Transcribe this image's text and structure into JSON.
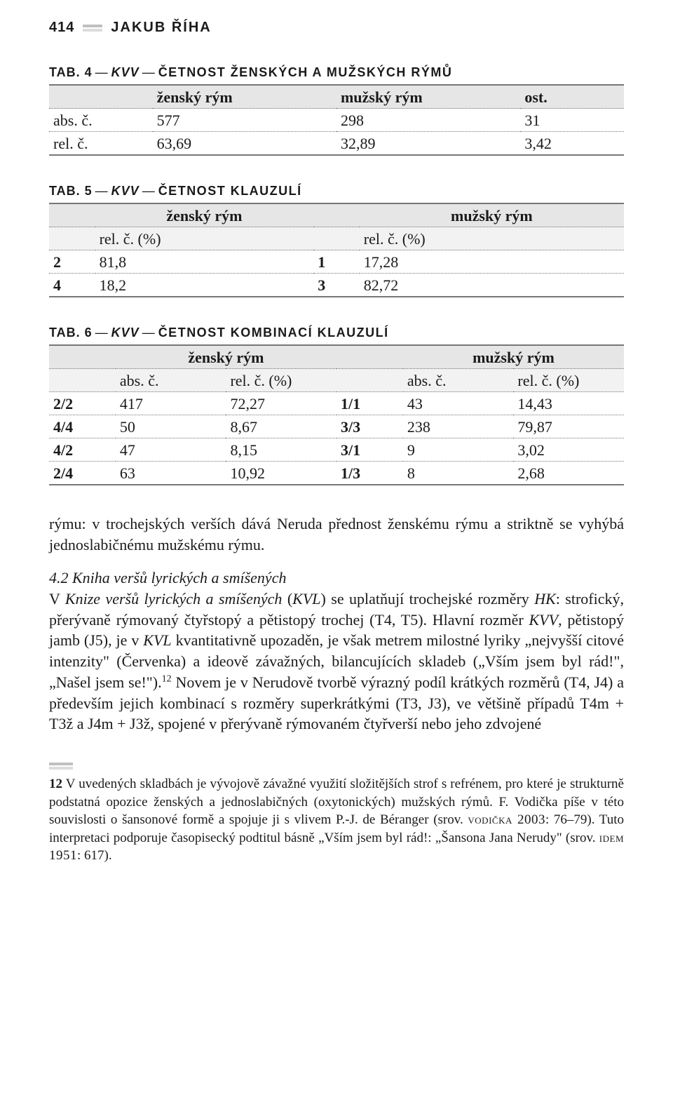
{
  "running_head": {
    "page_num": "414",
    "author": "JAKUB ŘÍHA"
  },
  "table4": {
    "caption_tab": "TAB. 4",
    "caption_ital": "KVV",
    "caption_desc": "ČETNOST ŽENSKÝCH A MUŽSKÝCH RÝMŮ",
    "headers": [
      "",
      "ženský rým",
      "mužský rým",
      "ost."
    ],
    "rows": [
      {
        "label": "abs. č.",
        "v": [
          "577",
          "298",
          "31"
        ]
      },
      {
        "label": "rel. č.",
        "v": [
          "63,69",
          "32,89",
          "3,42"
        ]
      }
    ]
  },
  "table5": {
    "caption_tab": "TAB. 5",
    "caption_ital": "KVV",
    "caption_desc": "ČETNOST KLAUZULÍ",
    "group_headers": [
      "",
      "ženský rým",
      "",
      "mužský rým"
    ],
    "sub_headers": [
      "",
      "rel. č. (%)",
      "",
      "rel. č. (%)"
    ],
    "rows": [
      {
        "a": "2",
        "b": "81,8",
        "c": "1",
        "d": "17,28"
      },
      {
        "a": "4",
        "b": "18,2",
        "c": "3",
        "d": "82,72"
      }
    ]
  },
  "table6": {
    "caption_tab": "TAB. 6",
    "caption_ital": "KVV",
    "caption_desc": "ČETNOST KOMBINACÍ KLAUZULÍ",
    "group_headers": [
      "",
      "ženský rým",
      "",
      "",
      "mužský rým",
      ""
    ],
    "sub_headers": [
      "",
      "abs. č.",
      "rel. č. (%)",
      "",
      "abs. č.",
      "rel. č. (%)"
    ],
    "rows": [
      {
        "c0": "2/2",
        "c1": "417",
        "c2": "72,27",
        "c3": "1/1",
        "c4": "43",
        "c5": "14,43"
      },
      {
        "c0": "4/4",
        "c1": "50",
        "c2": "8,67",
        "c3": "3/3",
        "c4": "238",
        "c5": "79,87"
      },
      {
        "c0": "4/2",
        "c1": "47",
        "c2": "8,15",
        "c3": "3/1",
        "c4": "9",
        "c5": "3,02"
      },
      {
        "c0": "2/4",
        "c1": "63",
        "c2": "10,92",
        "c3": "1/3",
        "c4": "8",
        "c5": "2,68"
      }
    ]
  },
  "para1": "rýmu: v trochejských verších dává Neruda přednost ženskému rýmu a striktně se vyhýbá jednoslabičnému mužskému rýmu.",
  "para2_heading": "4.2 Kniha veršů lyrických a smíšených",
  "para2_a": "V ",
  "para2_i1": "Knize veršů lyrických a smíšených",
  "para2_b": " (",
  "para2_i2": "KVL",
  "para2_c": ") se uplatňují trochejské rozměry ",
  "para2_i3": "HK",
  "para2_d": ": strofický, přerývaně rýmovaný čtyřstopý a pětistopý trochej (T4, T5). Hlavní rozměr ",
  "para2_i4": "KVV",
  "para2_e": ", pětistopý jamb (J5), je v ",
  "para2_i5": "KVL",
  "para2_f": " kvantitativně upozaděn, je však metrem milostné lyriky „nejvyšší citové intenzity\" (Červenka) a ideově závažných, bilancujících skladeb („Vším jsem byl rád!\", „Našel jsem se!\").",
  "para2_fnref": "12",
  "para2_g": " Novem je v Nerudově tvorbě výrazný podíl krátkých rozměrů (T4, J4) a především jejich kombinací s rozměry superkrátkými (T3, J3), ve většině případů T4m + T3ž a J4m + J3ž, spojené v přerývaně rýmovaném čtyřverší nebo jeho zdvojené",
  "footnote": {
    "num": "12",
    "t1": " V uvedených skladbách je vývojově závažné využití složitějších strof s refrénem, pro které je strukturně podstatná opozice ženských a jednoslabičných (oxytonických) mužských rýmů. F. Vodička píše v této souvislosti o šansonové formě a spojuje ji s vlivem P.-J. de Béranger (srov. ",
    "sc1": "vodička 2003",
    "t2": ": 76–79). Tuto interpretaci podporuje časopisecký podtitul básně „Vším jsem byl rád!: „Šansona Jana Nerudy\" (srov. ",
    "sc2": "idem 1951",
    "t3": ": 617)."
  }
}
